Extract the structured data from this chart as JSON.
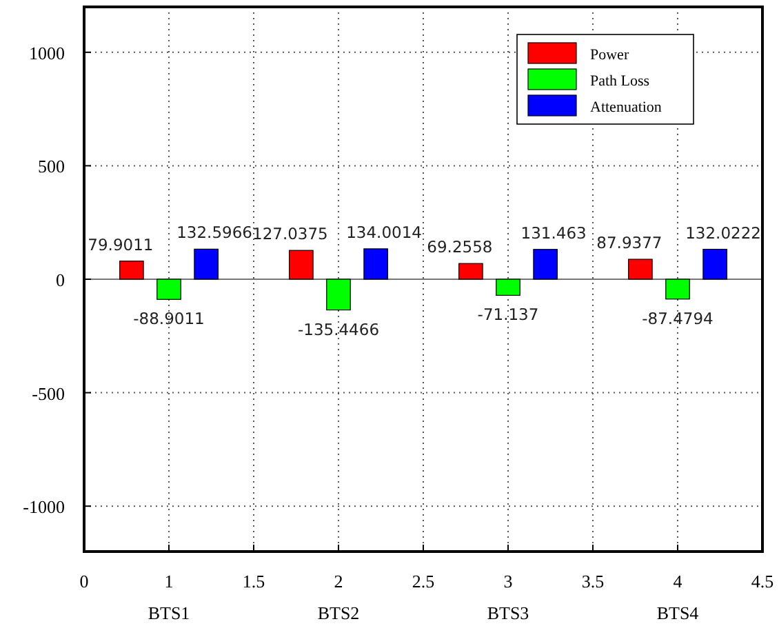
{
  "chart_data": {
    "type": "bar",
    "x": [
      1,
      2,
      3,
      4
    ],
    "series": [
      {
        "name": "Power",
        "color": "#ff0000",
        "values": [
          79.9011,
          127.0375,
          69.2558,
          87.9377
        ]
      },
      {
        "name": "Path Loss",
        "color": "#00ff00",
        "values": [
          -88.9011,
          -135.4466,
          -71.137,
          -87.4794
        ]
      },
      {
        "name": "Attenuation",
        "color": "#0000ff",
        "values": [
          132.5966,
          134.0014,
          131.463,
          132.0222
        ]
      }
    ],
    "xlim": [
      0.5,
      4.5
    ],
    "xticks": [
      {
        "value": 0.5,
        "label": "0"
      },
      1,
      1.5,
      2,
      2.5,
      3,
      3.5,
      4,
      4.5
    ],
    "ylim": [
      -1200,
      1200
    ],
    "yticks": [
      -1000,
      -500,
      0,
      500,
      1000
    ],
    "annotations": [
      "BTS1",
      "BTS2",
      "BTS3",
      "BTS4"
    ],
    "data_labels": true,
    "grid": true,
    "legend": "top right"
  }
}
